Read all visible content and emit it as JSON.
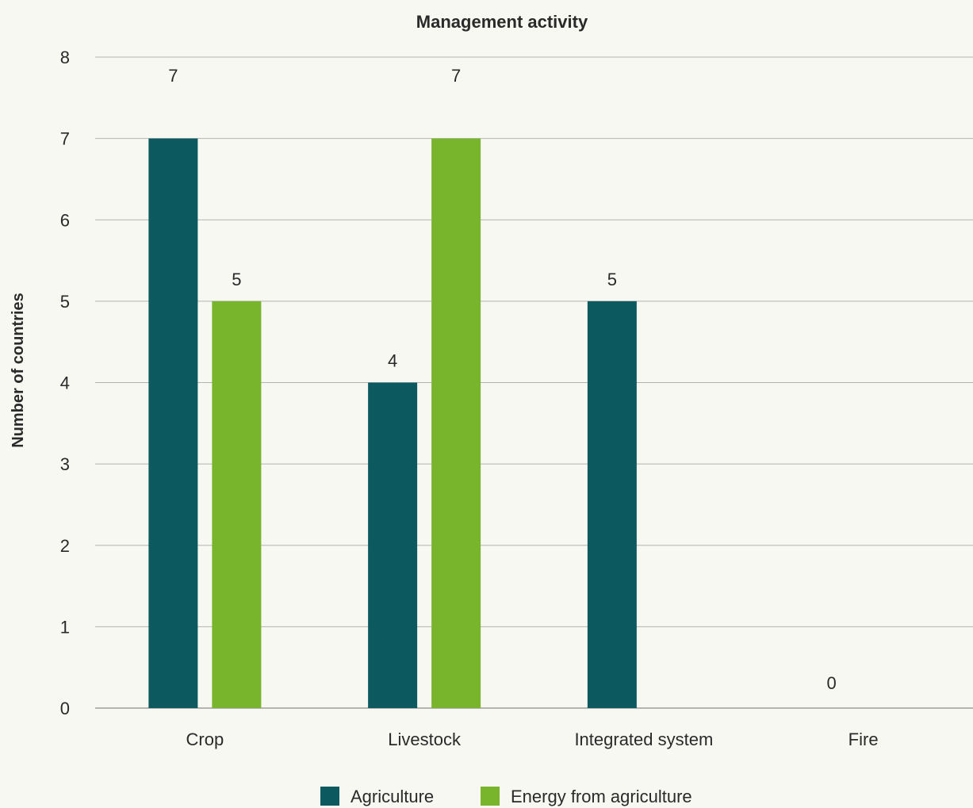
{
  "chart_data": {
    "type": "bar",
    "title": "Management activity",
    "xlabel": "",
    "ylabel": "Number of countries",
    "ylim": [
      0,
      8
    ],
    "yticks": [
      0,
      1,
      2,
      3,
      4,
      5,
      6,
      7,
      8
    ],
    "grid": true,
    "legend_position": "bottom",
    "categories": [
      "Crop",
      "Livestock",
      "Integrated system",
      "Fire"
    ],
    "series": [
      {
        "name": "Agriculture",
        "color": "#0c5a60",
        "values": [
          7,
          4,
          5,
          0
        ],
        "labels": [
          "7",
          "4",
          "5",
          "0"
        ]
      },
      {
        "name": "Energy from agriculture",
        "color": "#78b42c",
        "values": [
          5,
          7,
          null,
          null
        ],
        "labels": [
          "5",
          "7",
          null,
          null
        ]
      }
    ],
    "value_labels_raised_from_top": [
      {
        "series": 0,
        "category": 0,
        "text": "7"
      },
      {
        "series": 1,
        "category": 1,
        "text": "7"
      }
    ]
  }
}
